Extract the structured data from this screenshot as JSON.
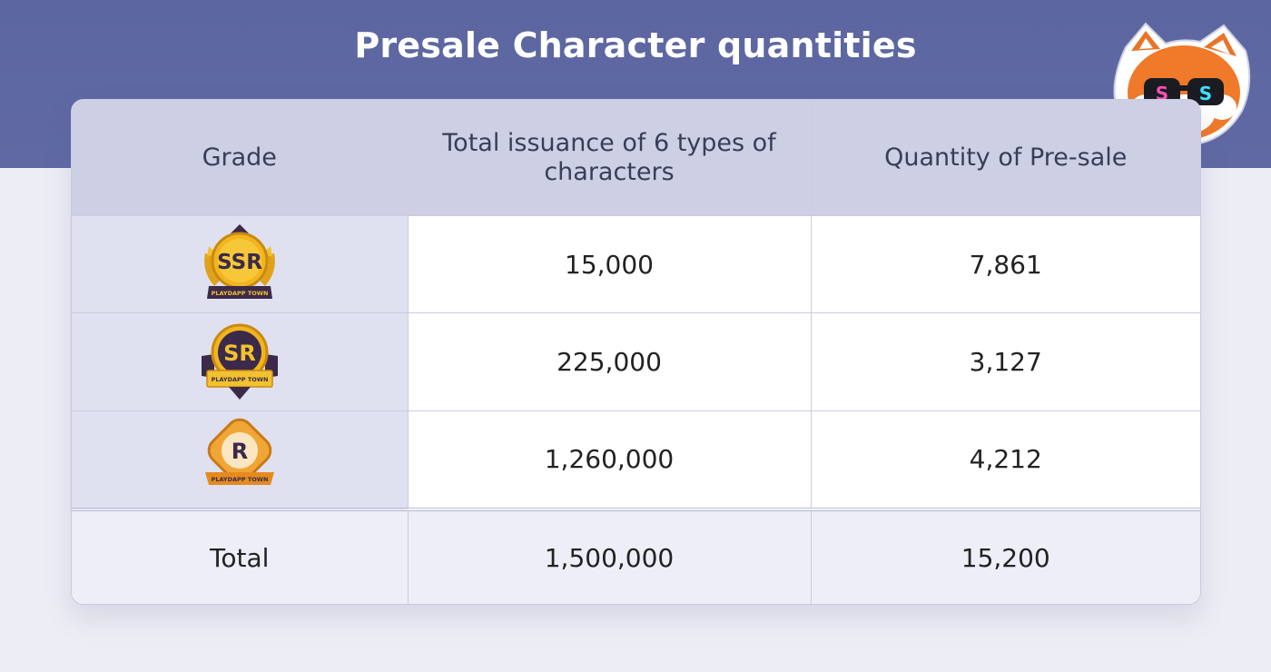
{
  "title": "Presale Character quantities",
  "colors": {
    "header_band": "#5c66a0",
    "table_header_bg": "#cdd0e5",
    "grade_cell_bg": "#dfe1f0",
    "gold": "#f2b51f",
    "dark_purple": "#3b2a4a"
  },
  "table": {
    "headers": {
      "grade": "Grade",
      "total_issuance": "Total issuance of 6 types of characters",
      "presale_qty": "Quantity of Pre-sale"
    },
    "rows": [
      {
        "grade": {
          "letter": "SSR",
          "banner": "PLAYDAPP TOWN",
          "icon": "ssr-grade-badge-icon"
        },
        "total_issuance": "15,000",
        "presale_qty": "7,861"
      },
      {
        "grade": {
          "letter": "SR",
          "banner": "PLAYDAPP TOWN",
          "icon": "sr-grade-badge-icon"
        },
        "total_issuance": "225,000",
        "presale_qty": "3,127"
      },
      {
        "grade": {
          "letter": "R",
          "banner": "PLAYDAPP TOWN",
          "icon": "r-grade-badge-icon"
        },
        "total_issuance": "1,260,000",
        "presale_qty": "4,212"
      }
    ],
    "total": {
      "label": "Total",
      "total_issuance": "1,500,000",
      "presale_qty": "15,200"
    }
  },
  "mascot": {
    "icon": "red-panda-sunglasses-icon"
  }
}
